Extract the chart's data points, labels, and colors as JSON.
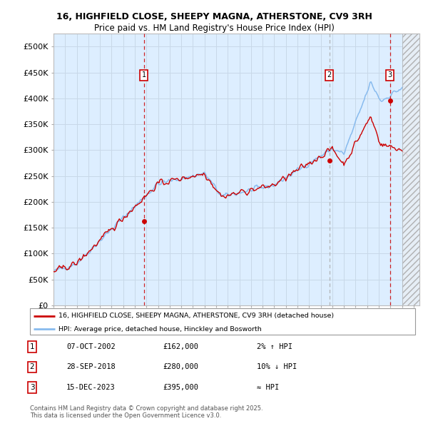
{
  "title1": "16, HIGHFIELD CLOSE, SHEEPY MAGNA, ATHERSTONE, CV9 3RH",
  "title2": "Price paid vs. HM Land Registry's House Price Index (HPI)",
  "xlim_start": 1995.0,
  "xlim_end": 2026.5,
  "ylim": [
    0,
    525000
  ],
  "yticks": [
    0,
    50000,
    100000,
    150000,
    200000,
    250000,
    300000,
    350000,
    400000,
    450000,
    500000
  ],
  "ytick_labels": [
    "£0",
    "£50K",
    "£100K",
    "£150K",
    "£200K",
    "£250K",
    "£300K",
    "£350K",
    "£400K",
    "£450K",
    "£500K"
  ],
  "xticks": [
    1995,
    1996,
    1997,
    1998,
    1999,
    2000,
    2001,
    2002,
    2003,
    2004,
    2005,
    2006,
    2007,
    2008,
    2009,
    2010,
    2011,
    2012,
    2013,
    2014,
    2015,
    2016,
    2017,
    2018,
    2019,
    2020,
    2021,
    2022,
    2023,
    2024,
    2025,
    2026
  ],
  "sale1_x": 2002.77,
  "sale1_y": 162000,
  "sale2_x": 2018.75,
  "sale2_y": 280000,
  "sale3_x": 2023.96,
  "sale3_y": 395000,
  "hatch_start": 2025.0,
  "line_color_red": "#cc0000",
  "line_color_blue": "#88bbee",
  "grid_color": "#c8d8e8",
  "bg_color": "#ddeeff",
  "legend_label1": "16, HIGHFIELD CLOSE, SHEEPY MAGNA, ATHERSTONE, CV9 3RH (detached house)",
  "legend_label2": "HPI: Average price, detached house, Hinckley and Bosworth",
  "annotation1_num": "1",
  "annotation1_date": "07-OCT-2002",
  "annotation1_price": "£162,000",
  "annotation1_hpi": "2% ↑ HPI",
  "annotation2_num": "2",
  "annotation2_date": "28-SEP-2018",
  "annotation2_price": "£280,000",
  "annotation2_hpi": "10% ↓ HPI",
  "annotation3_num": "3",
  "annotation3_date": "15-DEC-2023",
  "annotation3_price": "£395,000",
  "annotation3_hpi": "≈ HPI",
  "footer": "Contains HM Land Registry data © Crown copyright and database right 2025.\nThis data is licensed under the Open Government Licence v3.0."
}
